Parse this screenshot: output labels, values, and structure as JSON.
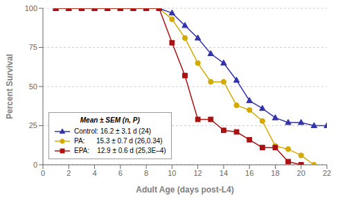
{
  "chart_data": {
    "type": "line",
    "xlabel": "Adult Age (days post-L4)",
    "ylabel": "Percent Survival",
    "xlim": [
      0,
      22
    ],
    "ylim": [
      0,
      100
    ],
    "xticks": [
      0,
      2,
      4,
      6,
      8,
      10,
      12,
      14,
      16,
      18,
      20,
      22
    ],
    "yticks": [
      0,
      25,
      50,
      75,
      100
    ],
    "grid": true,
    "legend": "lower left",
    "legend_title": "Mean ± SEM (n, P)",
    "series": [
      {
        "name": "Control: 16.2 ± 3.1 d (24)",
        "color": "#3333aa",
        "marker": "triangle",
        "x": [
          1,
          2,
          3,
          4,
          5,
          6,
          7,
          8,
          9,
          10,
          11,
          12,
          13,
          14,
          15,
          16,
          17,
          18,
          19,
          20,
          21,
          22
        ],
        "values": [
          100,
          100,
          100,
          100,
          100,
          100,
          100,
          100,
          100,
          97,
          89,
          81,
          71,
          65,
          54,
          41,
          36,
          30,
          27,
          27,
          25,
          25
        ]
      },
      {
        "name": "PA:      15.3 ± 0.7 d (26,0.34)",
        "color": "#d4aa00",
        "marker": "circle",
        "x": [
          1,
          2,
          3,
          4,
          5,
          6,
          7,
          8,
          9,
          10,
          11,
          12,
          13,
          14,
          15,
          16,
          17,
          18,
          19,
          20,
          21
        ],
        "values": [
          100,
          100,
          100,
          100,
          100,
          100,
          100,
          100,
          100,
          93,
          81,
          65,
          53,
          53,
          38,
          35,
          28,
          12,
          10,
          6,
          0
        ]
      },
      {
        "name": "EPA:    12.9 ± 0.6 d (25,3E–4)",
        "color": "#aa1111",
        "marker": "square",
        "x": [
          1,
          2,
          3,
          4,
          5,
          6,
          7,
          8,
          9,
          10,
          11,
          12,
          13,
          14,
          15,
          16,
          17,
          18,
          19,
          20
        ],
        "values": [
          100,
          100,
          100,
          100,
          100,
          100,
          100,
          100,
          100,
          78,
          57,
          29,
          29,
          22,
          21,
          16,
          11,
          11,
          2,
          0
        ]
      }
    ]
  }
}
